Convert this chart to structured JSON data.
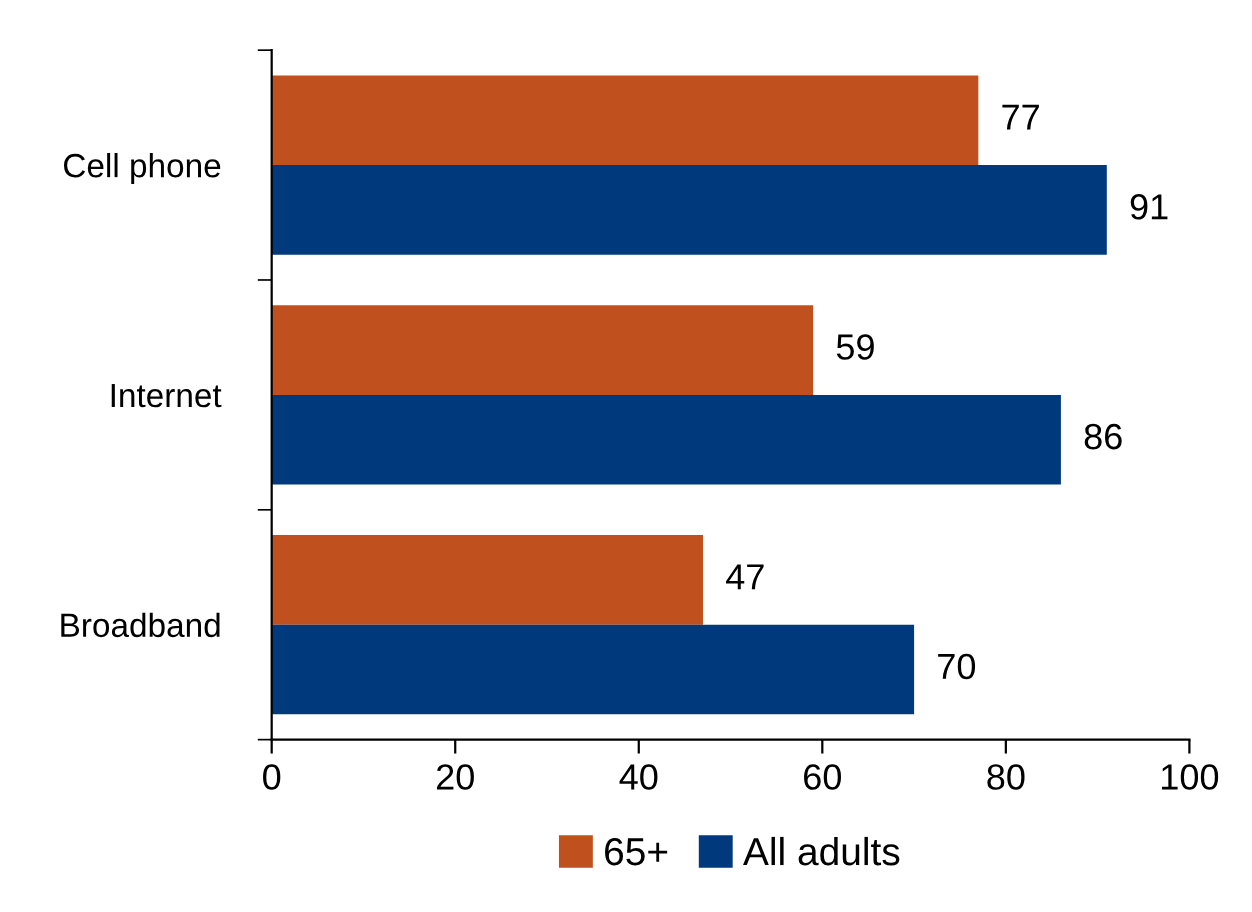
{
  "chart_data": {
    "type": "bar",
    "orientation": "horizontal",
    "categories": [
      "Cell phone",
      "Internet",
      "Broadband"
    ],
    "series": [
      {
        "name": "65+",
        "color": "#c0501e",
        "values": [
          77,
          59,
          47
        ]
      },
      {
        "name": "All adults",
        "color": "#003a7d",
        "values": [
          91,
          86,
          70
        ]
      }
    ],
    "xlim": [
      0,
      100
    ],
    "xticks": [
      0,
      20,
      40,
      60,
      80,
      100
    ],
    "data_labels": true,
    "grid": false,
    "legend": "bottom"
  }
}
